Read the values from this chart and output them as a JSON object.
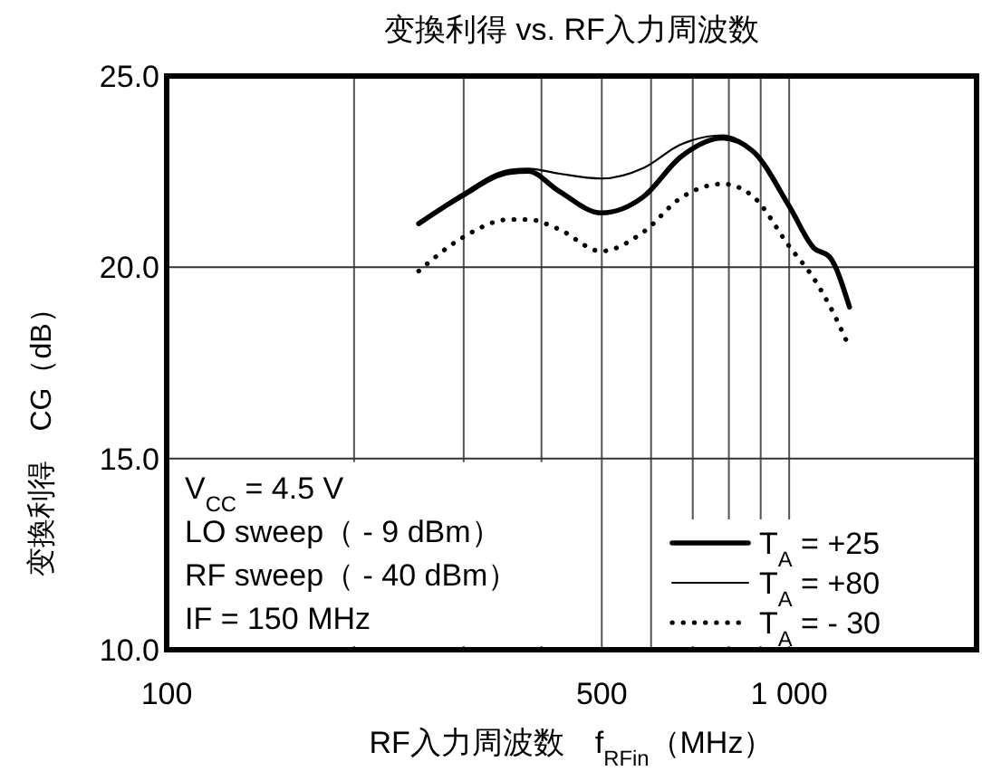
{
  "chart_data": {
    "type": "line",
    "title": "变換利得 vs. RF入力周波数",
    "xlabel": "RF入力周波数　f$_{RFin}$（MHz）",
    "ylabel": "变換利得　CG（dB）",
    "log": "x",
    "grid": true,
    "legend": "bottom right",
    "marker": "none",
    "xlim": [
      100,
      2000
    ],
    "xticks": [
      100,
      {
        "value": 200,
        "label": null
      },
      {
        "value": 300,
        "label": null
      },
      {
        "value": 400,
        "label": null
      },
      500,
      {
        "value": 600,
        "label": null
      },
      {
        "value": 700,
        "label": null
      },
      {
        "value": 800,
        "label": null
      },
      {
        "value": 900,
        "label": null
      },
      {
        "value": 1000,
        "label": "1 000"
      }
    ],
    "ylim": [
      10,
      25
    ],
    "yticks": [
      {
        "value": 10,
        "label": "10.0"
      },
      {
        "value": 15,
        "label": "15.0"
      },
      {
        "value": 20,
        "label": "20.0"
      },
      {
        "value": 25,
        "label": "25.0"
      }
    ],
    "x": [
      254,
      297,
      356,
      381,
      426,
      499,
      584,
      668,
      782,
      875,
      1000,
      1096,
      1161,
      1250
    ],
    "series": [
      {
        "name": "T$_{A}$ = +25",
        "color": "#000000",
        "line_style": "solid",
        "values": [
          21.14,
          21.85,
          22.48,
          22.51,
          22.0,
          21.42,
          21.85,
          22.87,
          23.38,
          23.03,
          21.6,
          20.5,
          20.27,
          18.96
        ]
      },
      {
        "name": "T$_{A}$ = +80",
        "color": "#000000",
        "line_style": "solid",
        "values": [
          21.14,
          21.9,
          22.55,
          22.58,
          22.45,
          22.32,
          22.6,
          23.2,
          23.45,
          23.03,
          21.6,
          20.5,
          20.27,
          18.96
        ]
      },
      {
        "name": "T$_{A}$ = - 30",
        "color": "#000000",
        "line_style": "dotted",
        "values": [
          19.9,
          20.75,
          21.25,
          21.25,
          21.0,
          20.42,
          20.93,
          21.8,
          22.18,
          21.85,
          20.55,
          19.7,
          19.0,
          17.9
        ]
      }
    ],
    "annotations": [
      "V$_{CC}$ = 4.5 V",
      "LO sweep（ - 9 dBm）",
      "RF sweep（ - 40 dBm）",
      "IF = 150 MHz"
    ]
  }
}
